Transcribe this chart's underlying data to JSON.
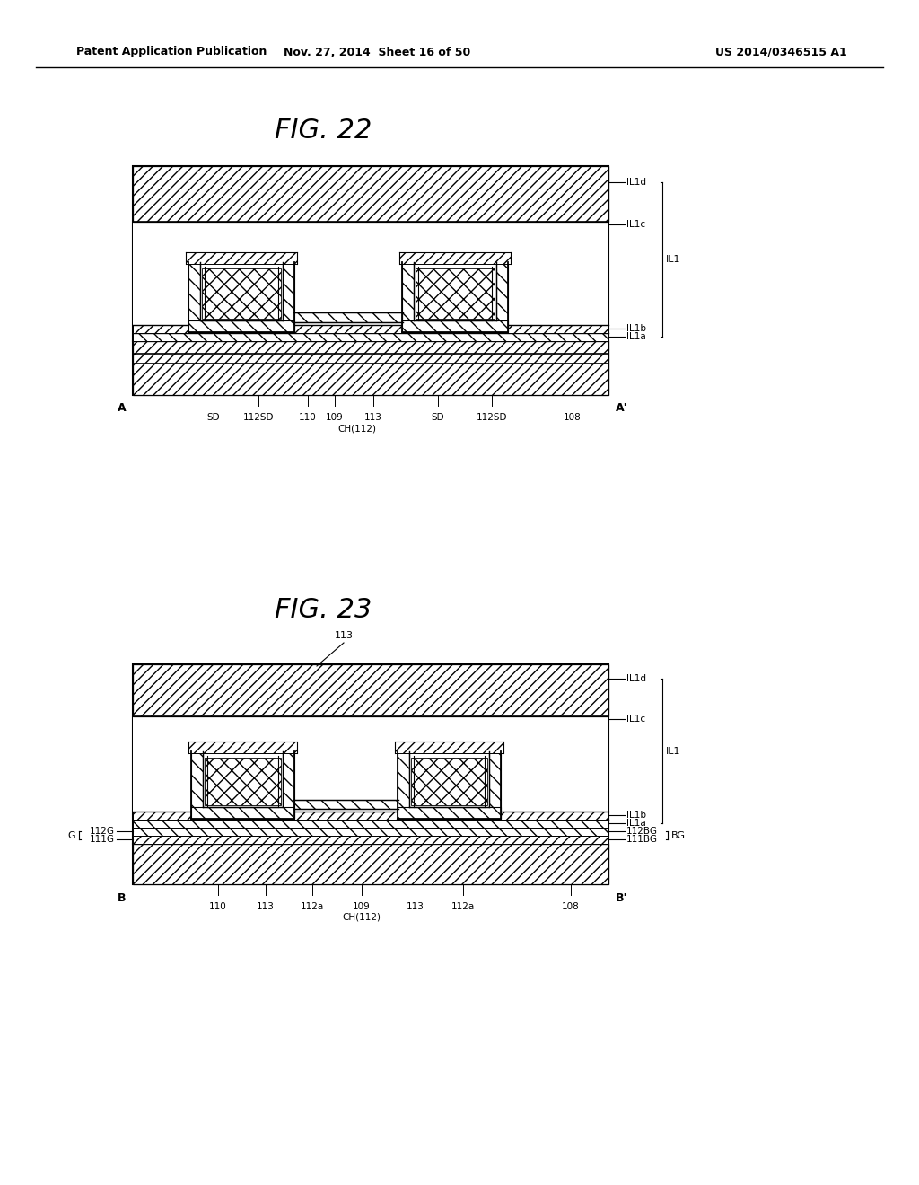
{
  "header_left": "Patent Application Publication",
  "header_mid": "Nov. 27, 2014  Sheet 16 of 50",
  "header_right": "US 2014/0346515 A1",
  "fig22_title": "FIG. 22",
  "fig23_title": "FIG. 23",
  "bg_color": "#ffffff",
  "line_color": "#000000"
}
